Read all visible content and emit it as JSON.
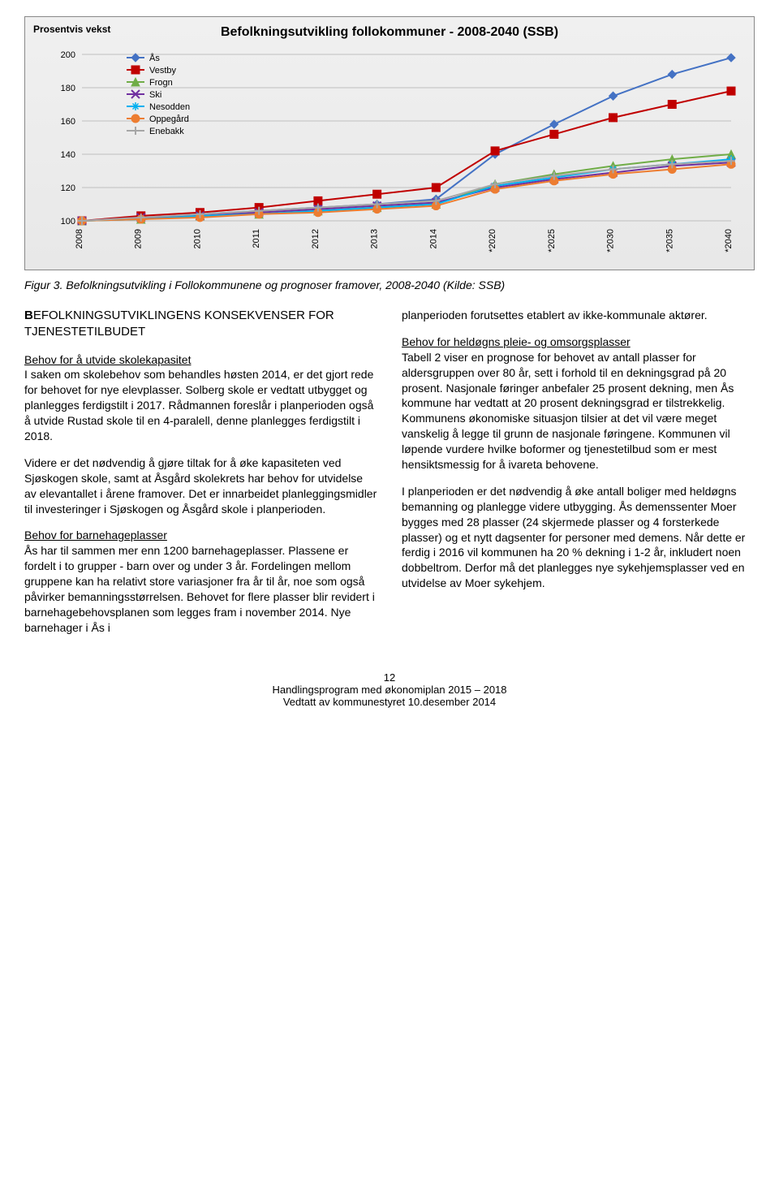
{
  "chart": {
    "title": "Befolkningsutvikling follokommuner - 2008-2040 (SSB)",
    "y_axis_label": "Prosentvis vekst",
    "y_ticks": [
      100,
      120,
      140,
      160,
      180,
      200
    ],
    "ylim": [
      100,
      200
    ],
    "x_labels": [
      "2008",
      "2009",
      "2010",
      "2011",
      "2012",
      "2013",
      "2014",
      "*2020",
      "*2025",
      "*2030",
      "*2035",
      "*2040"
    ],
    "background_color": "#ececec",
    "border_color": "#808080",
    "grid_color": "#bfbfbf",
    "axis_fontsize": 11,
    "title_fontsize": 16,
    "marker_size": 5,
    "line_width": 2,
    "legend": {
      "position": "upper-left",
      "items": [
        {
          "label": "Ås",
          "color": "#4472c4",
          "marker": "diamond"
        },
        {
          "label": "Vestby",
          "color": "#c00000",
          "marker": "square"
        },
        {
          "label": "Frogn",
          "color": "#70ad47",
          "marker": "triangle"
        },
        {
          "label": "Ski",
          "color": "#7030a0",
          "marker": "x"
        },
        {
          "label": "Nesodden",
          "color": "#00b0f0",
          "marker": "asterisk"
        },
        {
          "label": "Oppegård",
          "color": "#ed7d31",
          "marker": "circle"
        },
        {
          "label": "Enebakk",
          "color": "#a6a6a6",
          "marker": "plus"
        }
      ]
    },
    "series": {
      "Ås": [
        100,
        102,
        104,
        106,
        108,
        110,
        113,
        140,
        158,
        175,
        188,
        198
      ],
      "Vestby": [
        100,
        103,
        105,
        108,
        112,
        116,
        120,
        142,
        152,
        162,
        170,
        178
      ],
      "Frogn": [
        100,
        101,
        103,
        104,
        106,
        108,
        110,
        122,
        128,
        133,
        137,
        140
      ],
      "Ski": [
        100,
        102,
        103,
        105,
        107,
        109,
        111,
        120,
        125,
        129,
        133,
        135
      ],
      "Nesodden": [
        100,
        101,
        103,
        104,
        106,
        108,
        110,
        121,
        126,
        131,
        134,
        137
      ],
      "Oppegård": [
        100,
        101,
        102,
        104,
        105,
        107,
        109,
        119,
        124,
        128,
        131,
        134
      ],
      "Enebakk": [
        100,
        102,
        104,
        106,
        108,
        110,
        112,
        122,
        127,
        131,
        134,
        136
      ]
    }
  },
  "caption": "Figur 3. Befolkningsutvikling i Follokommunene og prognoser framover, 2008-2040 (Kilde: SSB)",
  "left": {
    "heading_cap": "B",
    "heading_rest": "EFOLKNINGSUTVIKLINGENS KONSEKVENSER FOR TJENESTETILBUDET",
    "sub1": "Behov for å utvide skolekapasitet",
    "p1": "I saken om skolebehov som behandles høsten 2014, er det gjort rede for behovet for nye elevplasser. Solberg skole er vedtatt utbygget og planlegges ferdigstilt i 2017. Rådmannen foreslår i planperioden også å utvide Rustad skole til en 4-paralell, denne planlegges ferdigstilt i 2018.",
    "p2": "Videre er det nødvendig å gjøre tiltak for å øke kapasiteten ved Sjøskogen skole, samt at Åsgård skolekrets har behov for utvidelse av elevantallet i årene framover. Det er innarbeidet planleggingsmidler til investeringer i Sjøskogen og Åsgård skole i planperioden.",
    "sub2": "Behov for barnehageplasser",
    "p3": "Ås har til sammen mer enn 1200 barnehageplasser. Plassene er fordelt i to grupper - barn over og under 3 år. Fordelingen mellom gruppene kan ha relativt store variasjoner fra år til år, noe som også påvirker bemanningsstørrelsen. Behovet for flere plasser blir revidert i barnehagebehovsplanen som legges fram i november 2014. Nye barnehager i Ås i"
  },
  "right": {
    "p1": "planperioden forutsettes etablert av ikke-kommunale aktører.",
    "sub1": "Behov for heldøgns pleie- og omsorgsplasser",
    "p2": "Tabell 2 viser en prognose for behovet av antall plasser for aldersgruppen over 80 år, sett i forhold til en dekningsgrad på 20 prosent. Nasjonale føringer anbefaler 25 prosent dekning, men Ås kommune har vedtatt at 20 prosent dekningsgrad er tilstrekkelig. Kommunens økonomiske situasjon tilsier at det vil være meget vanskelig å legge til grunn de nasjonale føringene. Kommunen vil løpende vurdere hvilke boformer og tjenestetilbud som er mest hensiktsmessig for å ivareta behovene.",
    "p3": "I planperioden er det nødvendig å øke antall boliger med heldøgns bemanning og planlegge videre utbygging. Ås demenssenter Moer bygges med 28 plasser (24 skjermede plasser og 4 forsterkede plasser) og et nytt dagsenter for personer med demens. Når dette er ferdig i 2016 vil kommunen ha 20 % dekning i 1-2 år, inkludert noen dobbeltrom. Derfor må det planlegges nye sykehjemsplasser ved en utvidelse av Moer sykehjem."
  },
  "footer": {
    "page": "12",
    "line1": "Handlingsprogram med økonomiplan 2015 – 2018",
    "line2": "Vedtatt av kommunestyret 10.desember 2014"
  }
}
